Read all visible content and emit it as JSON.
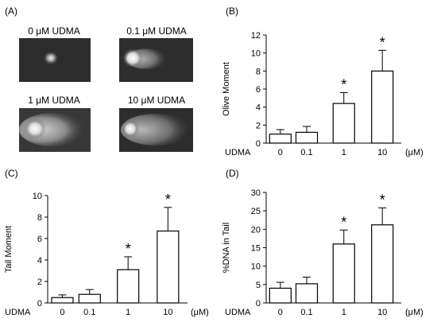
{
  "panel_a": {
    "label": "(A)",
    "images": [
      {
        "caption": "0 μM UDMA"
      },
      {
        "caption": "0.1 μM UDMA"
      },
      {
        "caption": "1 μM UDMA"
      },
      {
        "caption": "10 μM UDMA"
      }
    ]
  },
  "chart_data": [
    {
      "panel": "(B)",
      "type": "bar",
      "xlabel": "UDMA",
      "unit": "(μM)",
      "ylabel": "Olive Moment",
      "categories": [
        "0",
        "0.1",
        "1",
        "10"
      ],
      "values": [
        1.0,
        1.2,
        4.4,
        8.0
      ],
      "errors": [
        0.5,
        0.65,
        1.2,
        2.3
      ],
      "significant": [
        false,
        false,
        true,
        true
      ],
      "marker": "*",
      "ylim": [
        0,
        12
      ],
      "yticks": [
        0,
        2,
        4,
        6,
        8,
        10,
        12
      ]
    },
    {
      "panel": "(C)",
      "type": "bar",
      "xlabel": "UDMA",
      "unit": "(μM)",
      "ylabel": "Tail Moment",
      "categories": [
        "0",
        "0.1",
        "1",
        "10"
      ],
      "values": [
        0.5,
        0.8,
        3.1,
        6.7
      ],
      "errors": [
        0.25,
        0.45,
        1.2,
        2.2
      ],
      "significant": [
        false,
        false,
        true,
        true
      ],
      "marker": "*",
      "ylim": [
        0,
        10
      ],
      "yticks": [
        0,
        2,
        4,
        6,
        8,
        10
      ]
    },
    {
      "panel": "(D)",
      "type": "bar",
      "xlabel": "UDMA",
      "unit": "(μM)",
      "ylabel": "%DNA in Tail",
      "categories": [
        "0",
        "0.1",
        "1",
        "10"
      ],
      "values": [
        4.0,
        5.2,
        16.0,
        21.2
      ],
      "errors": [
        1.6,
        1.8,
        3.8,
        4.6
      ],
      "significant": [
        false,
        false,
        true,
        true
      ],
      "marker": "*",
      "ylim": [
        0,
        30
      ],
      "yticks": [
        0,
        5,
        10,
        15,
        20,
        25,
        30
      ]
    }
  ]
}
